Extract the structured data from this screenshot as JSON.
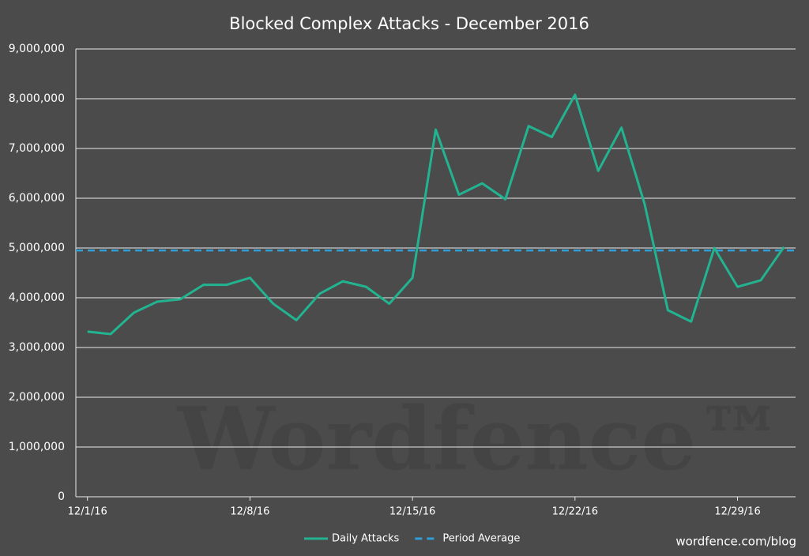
{
  "chart_data": {
    "type": "line",
    "title": "Blocked Complex Attacks - December 2016",
    "categories": [
      "12/1/16",
      null,
      null,
      null,
      null,
      null,
      null,
      "12/8/16",
      null,
      null,
      null,
      null,
      null,
      null,
      "12/15/16",
      null,
      null,
      null,
      null,
      null,
      null,
      "12/22/16",
      null,
      null,
      null,
      null,
      null,
      null,
      "12/29/16",
      null,
      null
    ],
    "series": [
      {
        "name": "Daily Attacks",
        "color": "#22b390",
        "values": [
          3320000,
          3270000,
          3700000,
          3920000,
          3970000,
          4260000,
          4260000,
          4400000,
          3880000,
          3550000,
          4080000,
          4330000,
          4220000,
          3880000,
          4400000,
          7380000,
          6070000,
          6300000,
          5980000,
          7450000,
          7230000,
          8080000,
          6550000,
          7420000,
          5880000,
          3750000,
          3520000,
          5000000,
          4220000,
          4350000,
          5020000
        ]
      }
    ],
    "reference_lines": [
      {
        "name": "Period Average",
        "color": "#2e9fd8",
        "value": 4950000,
        "dashed": true
      }
    ],
    "ylim": [
      0,
      9000000
    ],
    "yticks": [
      0,
      {
        "value": 1000000,
        "label": "1,000,000"
      },
      {
        "value": 2000000,
        "label": "2,000,000"
      },
      {
        "value": 3000000,
        "label": "3,000,000"
      },
      {
        "value": 4000000,
        "label": "4,000,000"
      },
      {
        "value": 5000000,
        "label": "5,000,000"
      },
      {
        "value": 6000000,
        "label": "6,000,000"
      },
      {
        "value": 7000000,
        "label": "7,000,000"
      },
      {
        "value": 8000000,
        "label": "8,000,000"
      },
      {
        "value": 9000000,
        "label": "9,000,000"
      }
    ],
    "grid": true,
    "watermark": "Wordfence™",
    "footer": "wordfence.com/blog"
  }
}
